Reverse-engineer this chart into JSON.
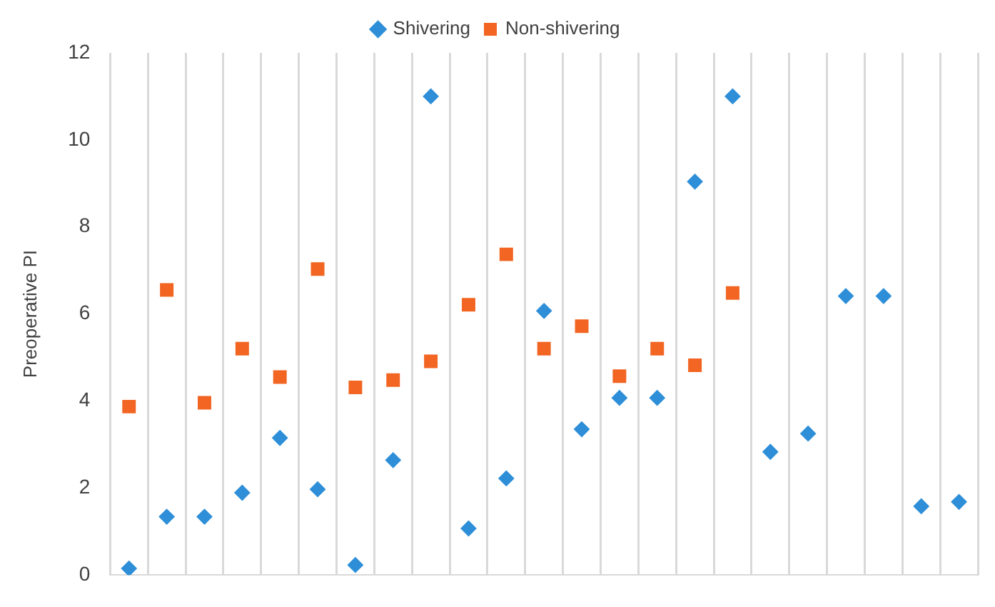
{
  "chart_data": {
    "type": "scatter",
    "ylabel": "Preoperative PI",
    "categories": [
      null,
      null,
      null,
      null,
      null,
      null,
      null,
      null,
      null,
      null,
      null,
      null,
      null,
      null,
      null,
      null,
      null,
      null,
      null,
      null,
      null,
      null,
      null
    ],
    "series": [
      {
        "name": "Shivering",
        "color": "#2e8fd8",
        "marker": "diamond",
        "values": [
          0.15,
          1.34,
          1.34,
          1.89,
          3.15,
          1.97,
          0.23,
          2.64,
          11.0,
          1.07,
          2.22,
          6.07,
          3.35,
          4.07,
          4.07,
          9.04,
          11.0,
          2.83,
          3.25,
          6.41,
          6.41,
          1.58,
          1.68
        ]
      },
      {
        "name": "Non-shivering",
        "color": "#f26522",
        "marker": "square",
        "values": [
          3.87,
          6.55,
          3.96,
          5.2,
          4.55,
          7.03,
          4.31,
          4.48,
          4.91,
          6.21,
          7.37,
          5.2,
          5.72,
          4.57,
          5.2,
          4.82,
          6.48,
          null,
          null,
          null,
          null,
          null,
          null
        ]
      }
    ],
    "ylim": [
      0,
      12
    ],
    "yticks": [
      0,
      2,
      4,
      6,
      8,
      10,
      12
    ],
    "grid": "x",
    "legend": "top",
    "tick_labels": "y"
  }
}
